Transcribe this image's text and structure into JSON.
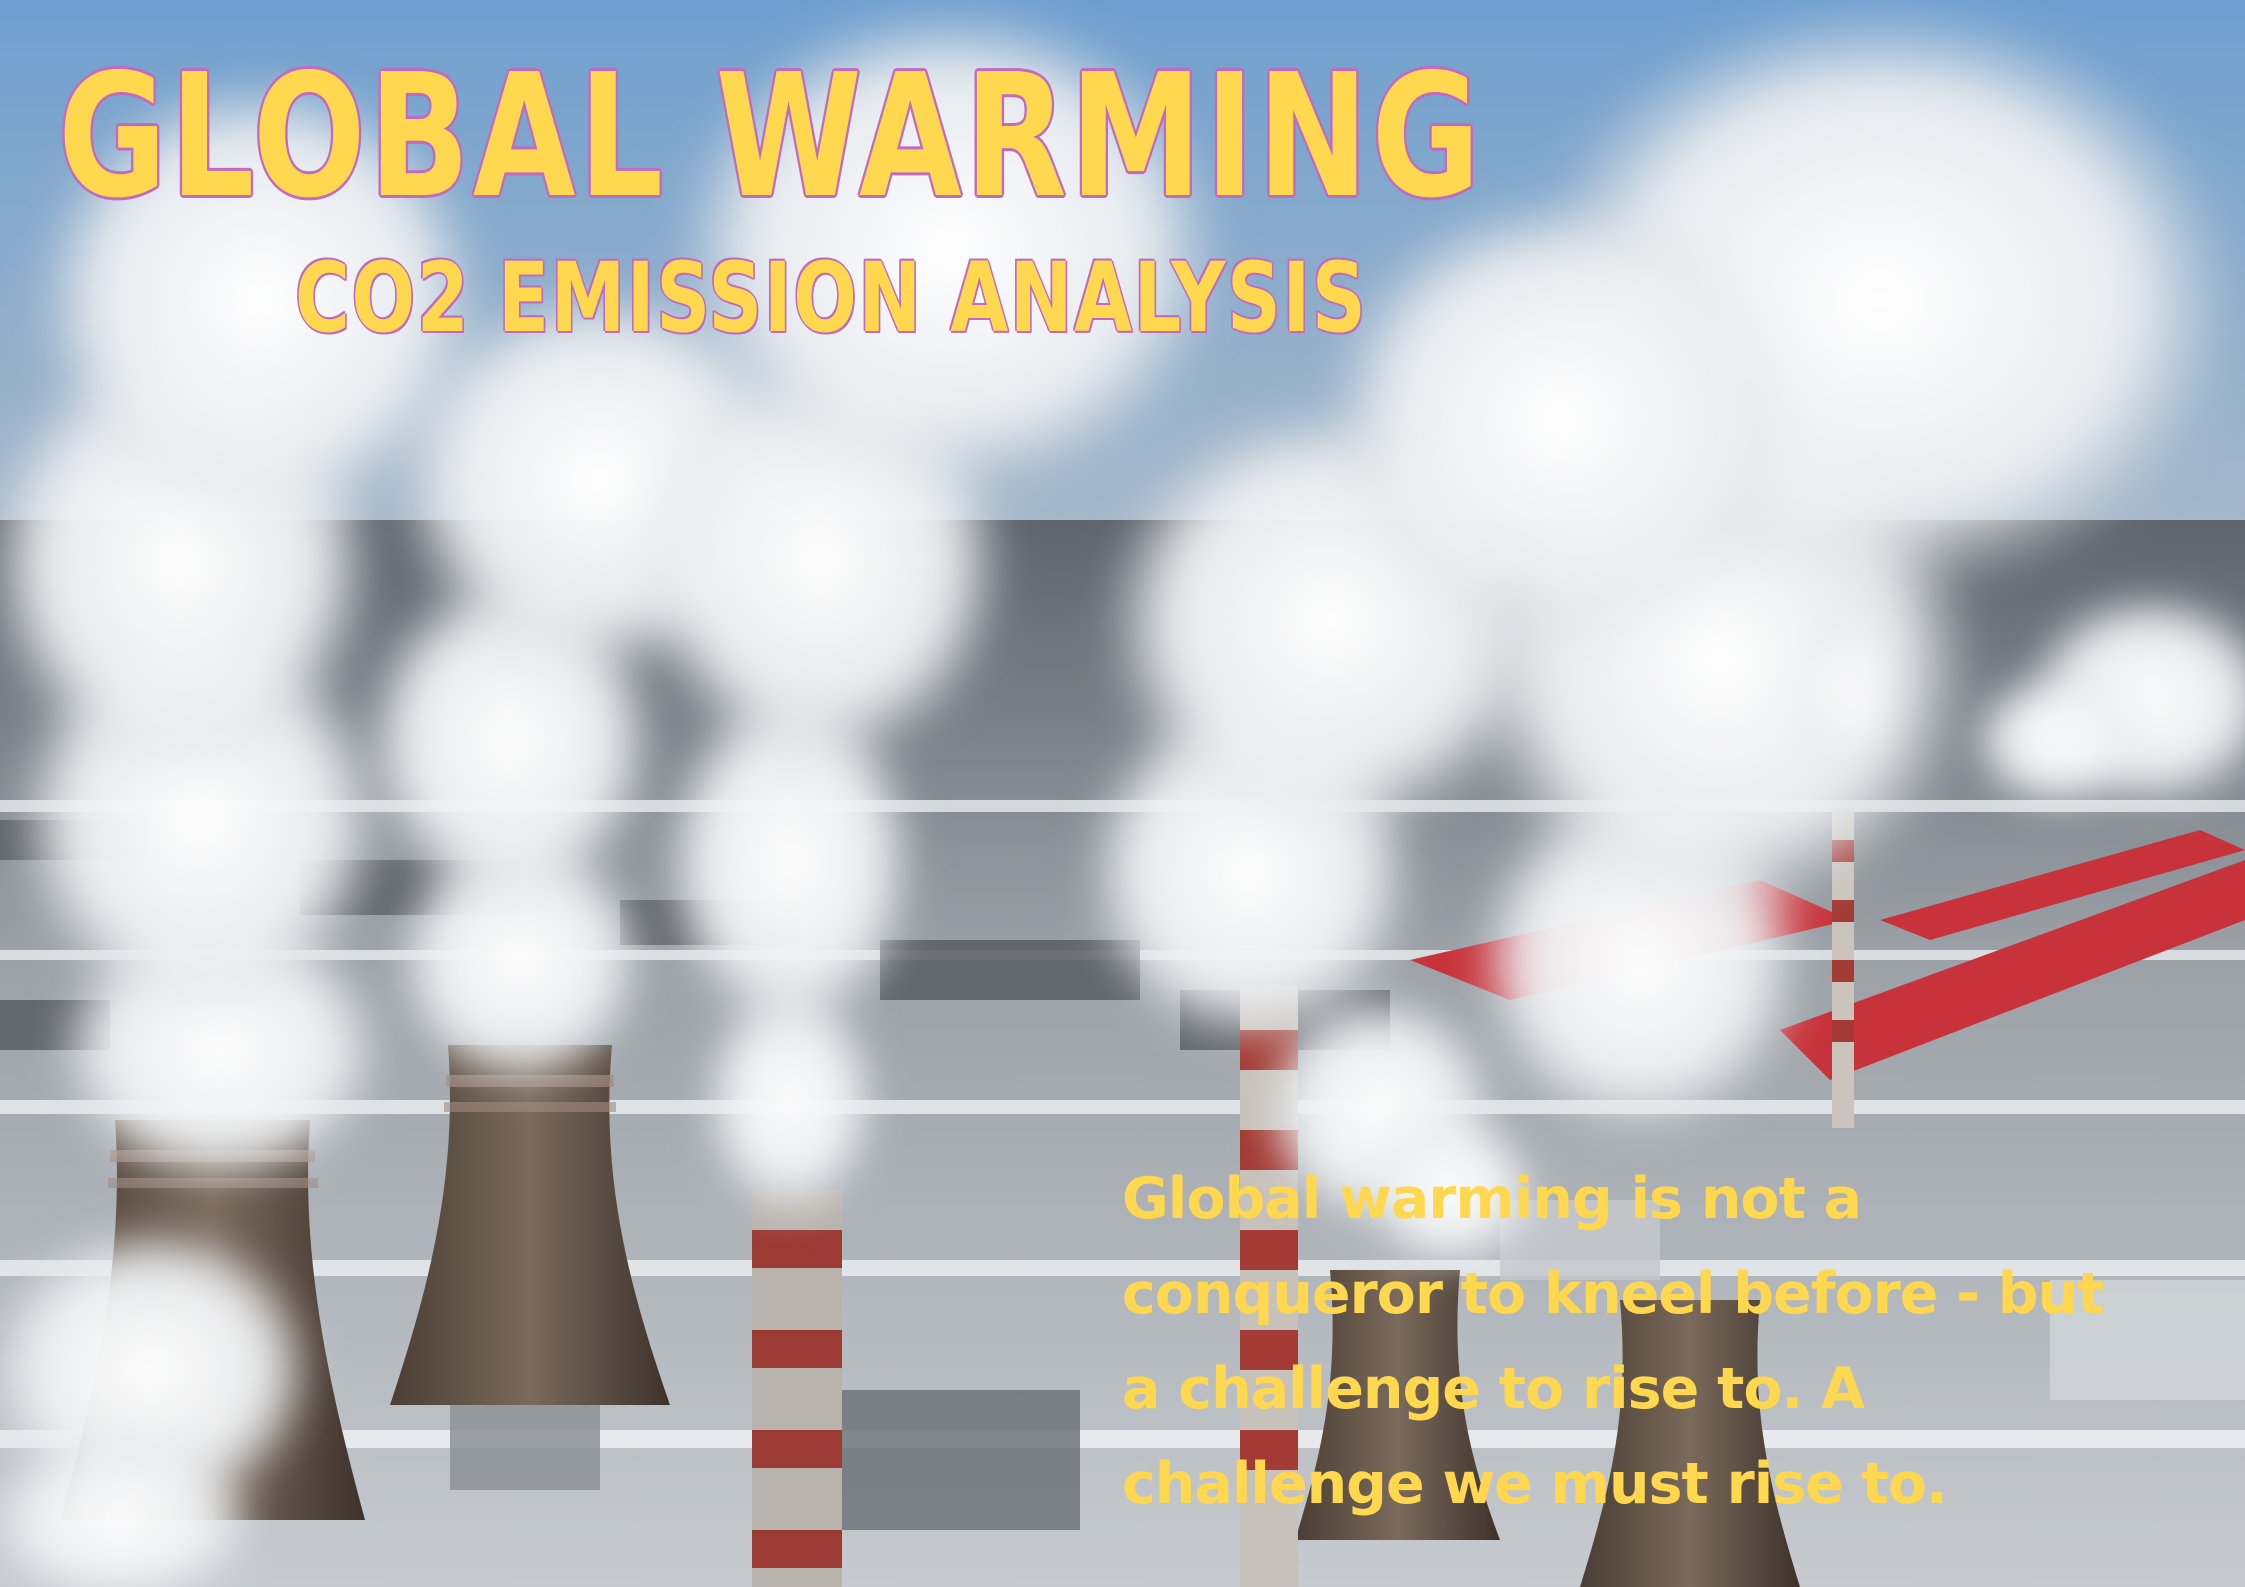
{
  "poster": {
    "title": "GLOBAL WARMING",
    "subtitle": "CO2 EMISSION ANALYSIS",
    "quote": "Global warming is not a conqueror to kneel before - but a challenge to rise to. A challenge we must rise to."
  },
  "colors": {
    "text_yellow": "#ffd84f",
    "outline_purple": "#c06ac0",
    "sky_blue": "#7fa2c6",
    "smoke_white": "#eef0f2",
    "roof_red": "#c8323a",
    "tower_brown": "#6a5a4c"
  },
  "background": {
    "icon": "power-plant-smokestacks-image"
  }
}
